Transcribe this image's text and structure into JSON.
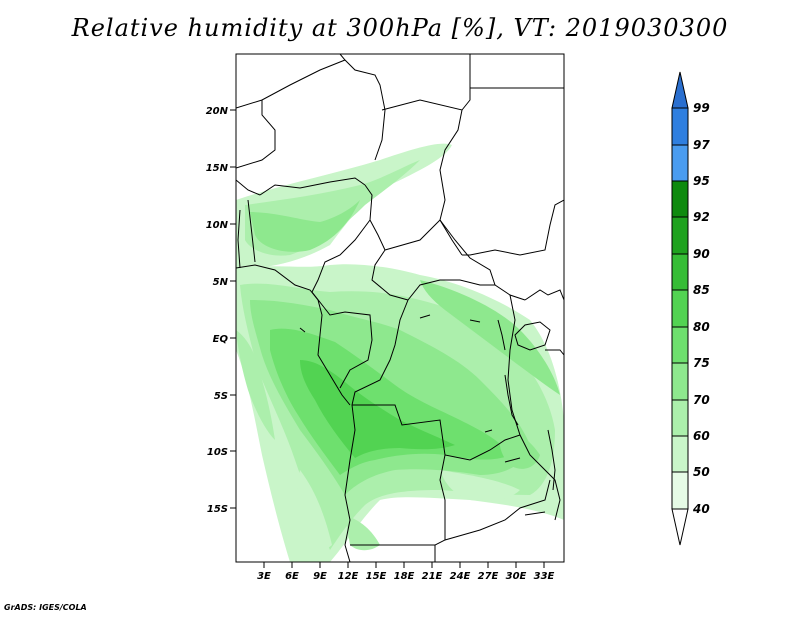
{
  "title": "Relative humidity at 300hPa [%], VT: 2019030300",
  "credit": "GrADS: IGES/COLA",
  "map": {
    "lat_labels": [
      "20N",
      "15N",
      "10N",
      "5N",
      "EQ",
      "5S",
      "10S",
      "15S"
    ],
    "lon_labels": [
      "3E",
      "6E",
      "9E",
      "12E",
      "15E",
      "18E",
      "21E",
      "24E",
      "27E",
      "30E",
      "33E"
    ]
  },
  "colorbar": {
    "levels": [
      "99",
      "97",
      "95",
      "92",
      "90",
      "85",
      "80",
      "75",
      "70",
      "60",
      "50",
      "40"
    ],
    "colors": {
      "above_99": "#2a6fcf",
      "97_99": "#2f7fe0",
      "95_97": "#4a9cf0",
      "92_95": "#0e8a0e",
      "90_92": "#1fa21f",
      "85_90": "#36bd36",
      "80_85": "#52d352",
      "75_80": "#6ee06e",
      "70_75": "#8ee88e",
      "60_70": "#acefac",
      "50_60": "#c9f5c9",
      "40_50": "#e6fbe6",
      "below_40": "#ffffff"
    }
  }
}
